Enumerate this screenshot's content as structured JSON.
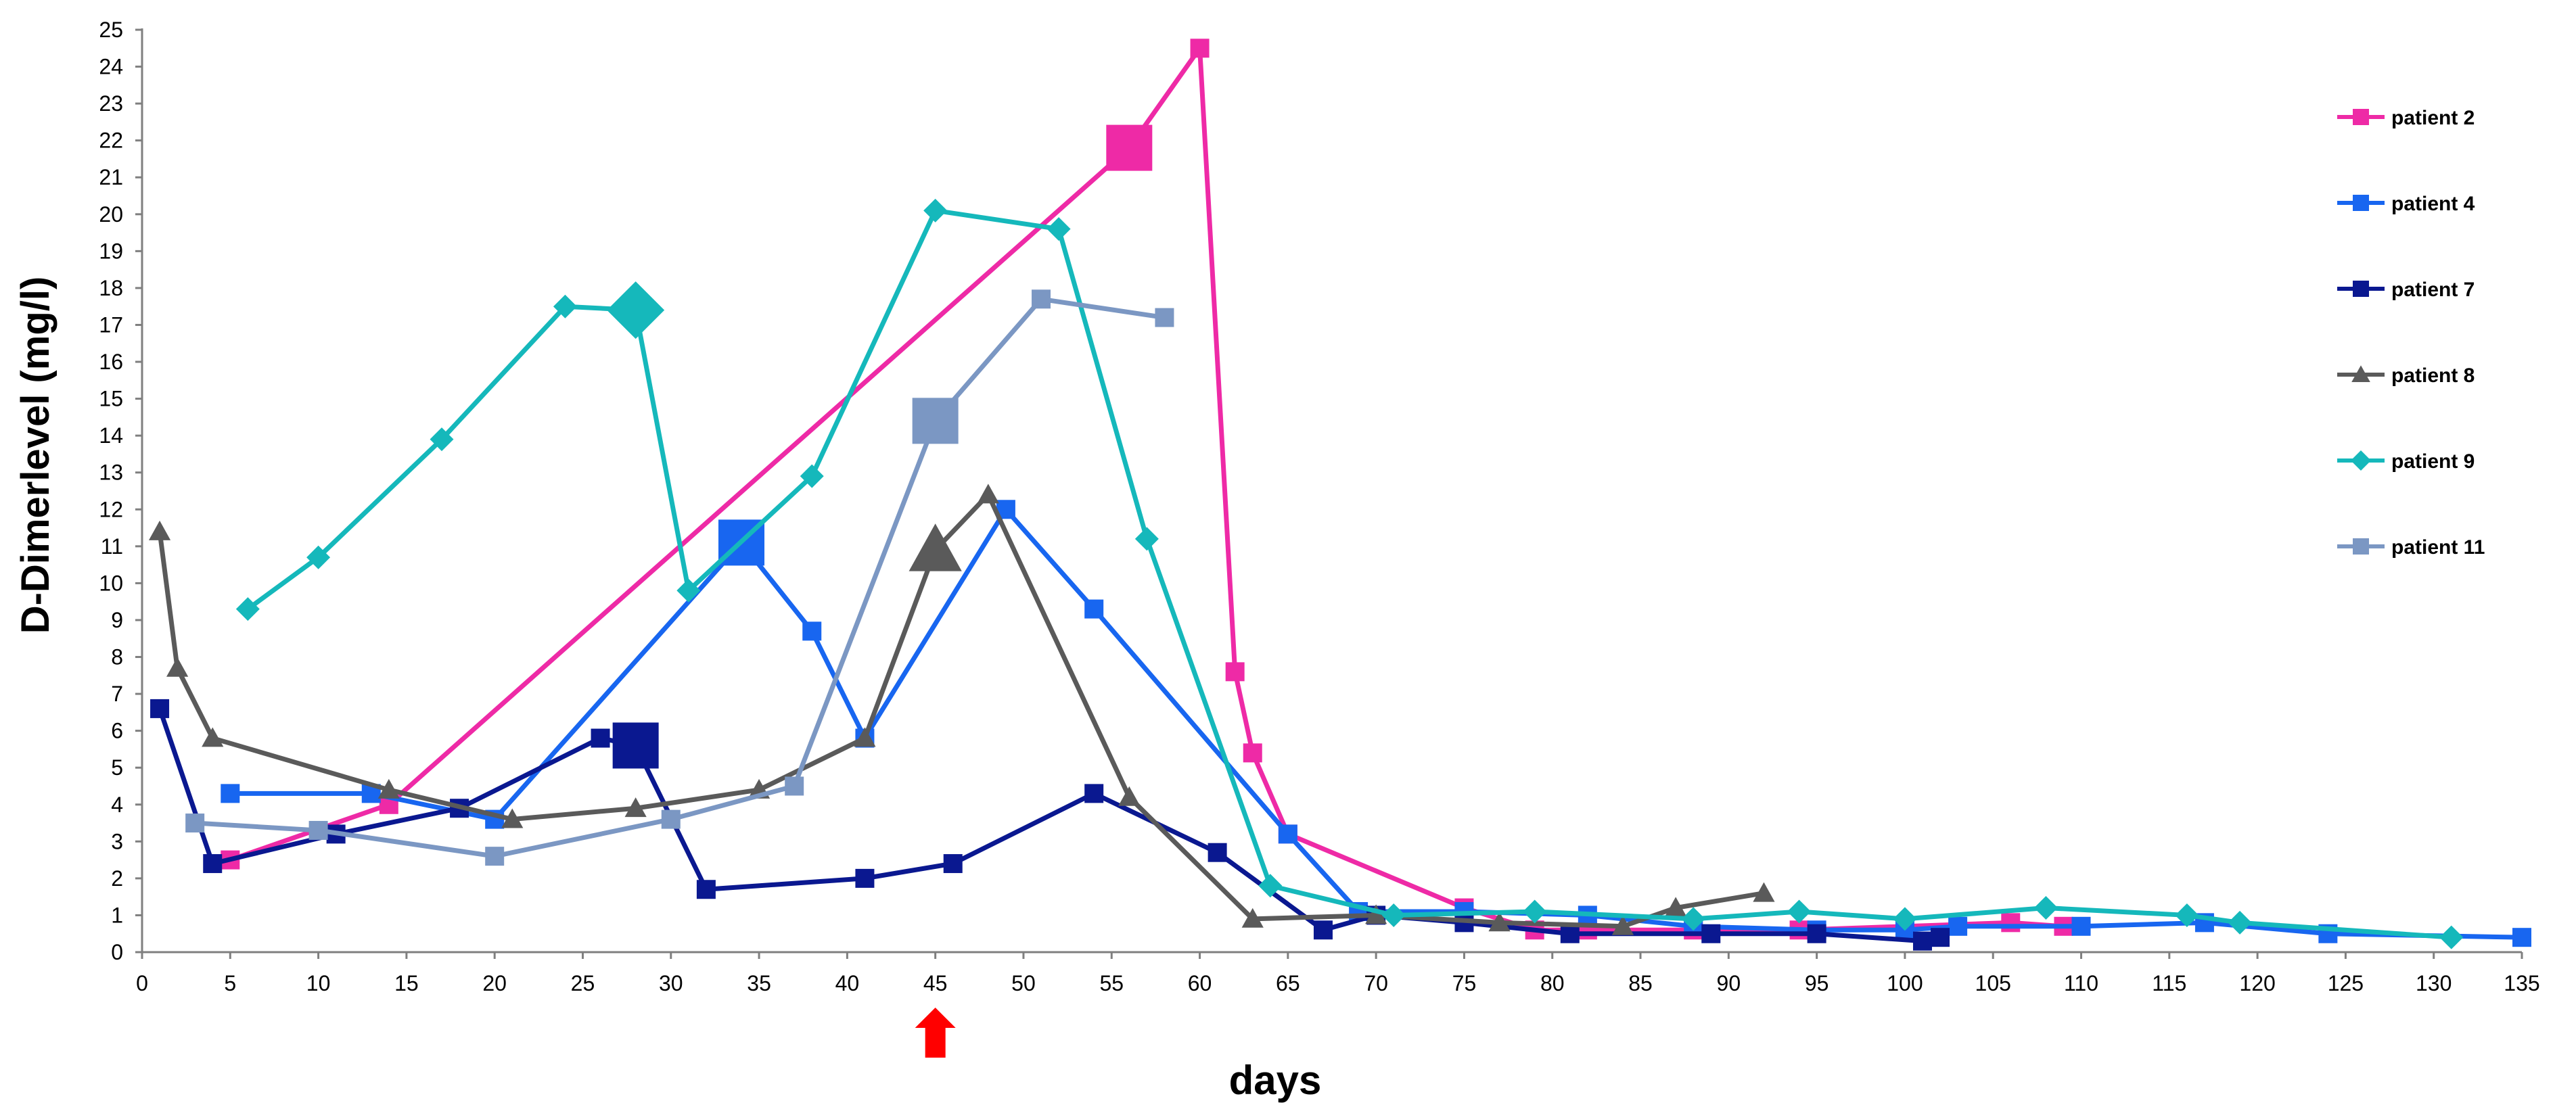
{
  "chart_data": {
    "type": "line",
    "title": "",
    "xlabel": "days",
    "ylabel": "D-Dimerlevel (mg/l)",
    "xlim": [
      0,
      135
    ],
    "ylim": [
      0,
      25
    ],
    "x_ticks": [
      0,
      5,
      10,
      15,
      20,
      25,
      30,
      35,
      40,
      45,
      50,
      55,
      60,
      65,
      70,
      75,
      80,
      85,
      90,
      95,
      100,
      105,
      110,
      115,
      120,
      125,
      130,
      135
    ],
    "y_ticks": [
      0,
      1,
      2,
      3,
      4,
      5,
      6,
      7,
      8,
      9,
      10,
      11,
      12,
      13,
      14,
      15,
      16,
      17,
      18,
      19,
      20,
      21,
      22,
      23,
      24,
      25
    ],
    "legend_position": "right",
    "annotation": {
      "type": "arrow",
      "x": 45,
      "color": "#ff0000",
      "direction": "up"
    },
    "series": [
      {
        "name": "patient 2",
        "color": "#ee2aa6",
        "marker": "square",
        "points": [
          [
            5,
            2.5
          ],
          [
            14,
            4.0
          ],
          [
            56,
            21.8
          ],
          [
            60,
            24.5
          ],
          [
            62,
            7.6
          ],
          [
            63,
            5.4
          ],
          [
            65,
            3.2
          ],
          [
            75,
            1.2
          ],
          [
            79,
            0.6
          ],
          [
            82,
            0.6
          ],
          [
            88,
            0.6
          ],
          [
            94,
            0.6
          ],
          [
            106,
            0.8
          ],
          [
            109,
            0.7
          ]
        ],
        "highlights": [
          [
            56,
            21.8
          ]
        ]
      },
      {
        "name": "patient 4",
        "color": "#1866f0",
        "marker": "square",
        "points": [
          [
            5,
            4.3
          ],
          [
            13,
            4.3
          ],
          [
            20,
            3.6
          ],
          [
            34,
            11.1
          ],
          [
            38,
            8.7
          ],
          [
            41,
            5.8
          ],
          [
            49,
            12.0
          ],
          [
            54,
            9.3
          ],
          [
            65,
            3.2
          ],
          [
            69,
            1.1
          ],
          [
            75,
            1.1
          ],
          [
            82,
            1.0
          ],
          [
            88,
            0.7
          ],
          [
            95,
            0.6
          ],
          [
            100,
            0.6
          ],
          [
            103,
            0.7
          ],
          [
            110,
            0.7
          ],
          [
            117,
            0.8
          ],
          [
            124,
            0.5
          ],
          [
            135,
            0.4
          ]
        ],
        "highlights": [
          [
            34,
            11.1
          ]
        ]
      },
      {
        "name": "patient 7",
        "color": "#0a1890",
        "marker": "square",
        "points": [
          [
            1,
            6.6
          ],
          [
            4,
            2.4
          ],
          [
            11,
            3.2
          ],
          [
            18,
            3.9
          ],
          [
            26,
            5.8
          ],
          [
            28,
            5.6
          ],
          [
            32,
            1.7
          ],
          [
            41,
            2.0
          ],
          [
            46,
            2.4
          ],
          [
            54,
            4.3
          ],
          [
            61,
            2.7
          ],
          [
            67,
            0.6
          ],
          [
            70,
            1.0
          ],
          [
            75,
            0.8
          ],
          [
            81,
            0.5
          ],
          [
            89,
            0.5
          ],
          [
            95,
            0.5
          ],
          [
            101,
            0.3
          ],
          [
            102,
            0.4
          ]
        ],
        "highlights": [
          [
            28,
            5.6
          ]
        ]
      },
      {
        "name": "patient 8",
        "color": "#5a5a5a",
        "marker": "triangle",
        "points": [
          [
            1,
            11.4
          ],
          [
            2,
            7.7
          ],
          [
            4,
            5.8
          ],
          [
            14,
            4.4
          ],
          [
            21,
            3.6
          ],
          [
            28,
            3.9
          ],
          [
            35,
            4.4
          ],
          [
            41,
            5.8
          ],
          [
            45,
            10.9
          ],
          [
            48,
            12.4
          ],
          [
            56,
            4.2
          ],
          [
            63,
            0.9
          ],
          [
            70,
            1.0
          ],
          [
            77,
            0.8
          ],
          [
            84,
            0.7
          ],
          [
            87,
            1.2
          ],
          [
            92,
            1.6
          ]
        ],
        "highlights": [
          [
            45,
            10.9
          ]
        ]
      },
      {
        "name": "patient 9",
        "color": "#15b8bb",
        "marker": "diamond",
        "points": [
          [
            6,
            9.3
          ],
          [
            10,
            10.7
          ],
          [
            17,
            13.9
          ],
          [
            24,
            17.5
          ],
          [
            28,
            17.4
          ],
          [
            31,
            9.8
          ],
          [
            38,
            12.9
          ],
          [
            45,
            20.1
          ],
          [
            52,
            19.6
          ],
          [
            57,
            11.2
          ],
          [
            64,
            1.8
          ],
          [
            71,
            1.0
          ],
          [
            79,
            1.1
          ],
          [
            88,
            0.9
          ],
          [
            94,
            1.1
          ],
          [
            100,
            0.9
          ],
          [
            108,
            1.2
          ],
          [
            116,
            1.0
          ],
          [
            119,
            0.8
          ],
          [
            131,
            0.4
          ]
        ],
        "highlights": [
          [
            28,
            17.4
          ]
        ]
      },
      {
        "name": "patient 11",
        "color": "#7b97c3",
        "marker": "square",
        "points": [
          [
            3,
            3.5
          ],
          [
            10,
            3.3
          ],
          [
            20,
            2.6
          ],
          [
            30,
            3.6
          ],
          [
            37,
            4.5
          ],
          [
            45,
            14.4
          ],
          [
            51,
            17.7
          ],
          [
            58,
            17.2
          ]
        ],
        "highlights": [
          [
            45,
            14.4
          ]
        ]
      }
    ]
  }
}
